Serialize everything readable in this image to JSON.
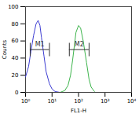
{
  "chart_data": {
    "type": "line",
    "xlabel": "FL1-H",
    "ylabel": "Counts",
    "log": "x",
    "xlim": [
      1,
      10000
    ],
    "xticks": [
      {
        "value": 1,
        "label": "10⁰"
      },
      {
        "value": 10,
        "label": "10¹"
      },
      {
        "value": 100,
        "label": "10²"
      },
      {
        "value": 1000,
        "label": "10³"
      },
      {
        "value": 10000,
        "label": "10⁴"
      }
    ],
    "ylim": [
      0,
      100
    ],
    "yticks": [
      0,
      20,
      40,
      60,
      80,
      100
    ],
    "series": [
      {
        "color": "#3c3cd2",
        "x": [
          1,
          1.3,
          1.6,
          2,
          2.5,
          3,
          3.5,
          4,
          5,
          6,
          8,
          10,
          13,
          20
        ],
        "values": [
          18,
          30,
          48,
          66,
          80,
          84,
          78,
          64,
          42,
          24,
          10,
          4,
          1,
          0
        ]
      },
      {
        "color": "#3cb44b",
        "x": [
          20,
          30,
          40,
          50,
          60,
          70,
          80,
          100,
          120,
          150,
          200,
          250,
          300,
          400
        ],
        "values": [
          0,
          2,
          8,
          20,
          38,
          55,
          70,
          78,
          75,
          60,
          35,
          15,
          6,
          1
        ]
      }
    ],
    "markers": [
      {
        "label": "M1",
        "x1": 1.5,
        "x2": 8,
        "y": 50
      },
      {
        "label": "M2",
        "x1": 45,
        "x2": 250,
        "y": 50
      }
    ]
  }
}
